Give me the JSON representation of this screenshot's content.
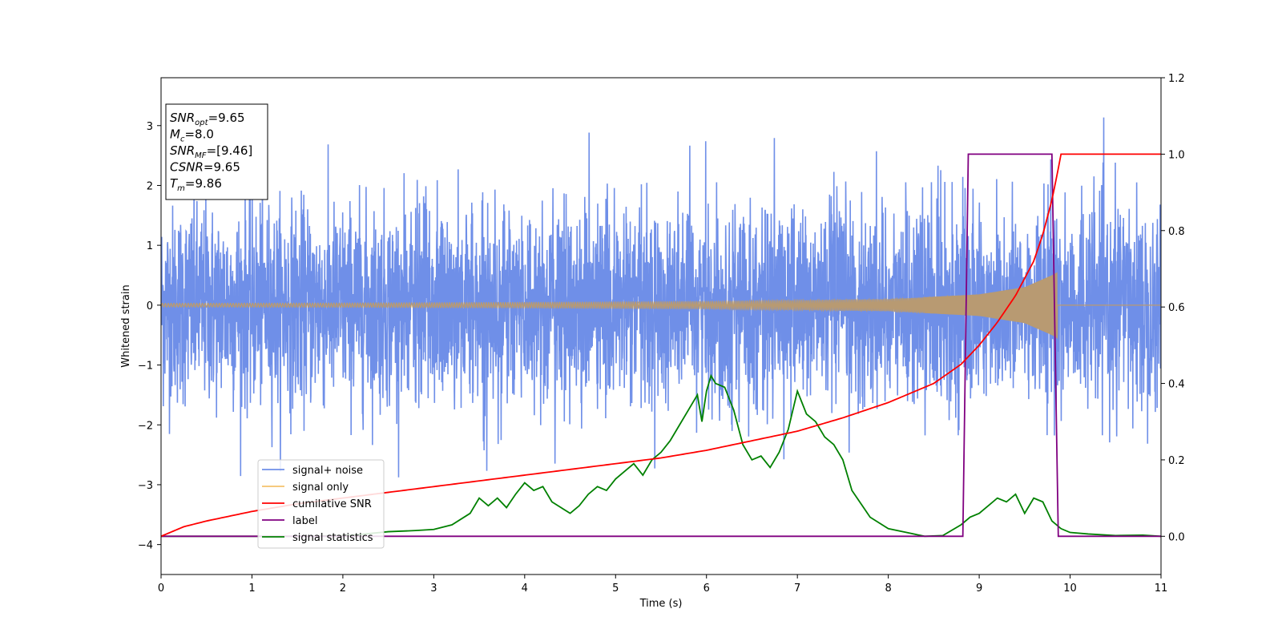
{
  "chart_data": {
    "type": "line",
    "xlabel": "Time (s)",
    "ylabel": "Whitened strain",
    "xlim": [
      0,
      11
    ],
    "ylim": [
      -4.5,
      3.8
    ],
    "y2lim": [
      -0.1,
      1.2
    ],
    "x_ticks": [
      0,
      1,
      2,
      3,
      4,
      5,
      6,
      7,
      8,
      9,
      10,
      11
    ],
    "y_ticks": [
      -4,
      -3,
      -2,
      -1,
      0,
      1,
      2,
      3
    ],
    "y2_ticks": [
      "0.0",
      "0.2",
      "0.4",
      "0.6",
      "0.8",
      "1.0",
      "1.2"
    ],
    "grid": false,
    "legend_position": "lower-left",
    "colors": {
      "noise": "#6f8fe8",
      "signal": "#f5c26b",
      "cumulative": "#ff0000",
      "label": "#800080",
      "stats": "#008000",
      "overlap": "#b89a72"
    },
    "series": [
      {
        "name": "signal+ noise",
        "axis": "left",
        "color": "#6f8fe8",
        "description_range": [
          -3.0,
          3.2
        ]
      },
      {
        "name": "signal only",
        "axis": "left",
        "color": "#f5c26b",
        "amplitude_envelope": {
          "x": [
            0,
            2,
            4,
            6,
            8,
            9,
            9.5,
            9.8,
            9.86
          ],
          "amp": [
            0.03,
            0.035,
            0.045,
            0.06,
            0.1,
            0.18,
            0.3,
            0.5,
            0.55
          ]
        },
        "end_time": 9.86
      },
      {
        "name": "cumilative SNR",
        "axis": "right",
        "x": [
          0,
          0.25,
          0.5,
          1,
          1.5,
          2,
          2.5,
          3,
          3.5,
          4,
          4.5,
          5,
          5.5,
          6,
          6.5,
          7,
          7.5,
          8,
          8.5,
          8.8,
          9,
          9.2,
          9.4,
          9.6,
          9.7,
          9.8,
          9.86,
          9.9,
          11
        ],
        "y": [
          0.0,
          0.025,
          0.04,
          0.065,
          0.085,
          0.1,
          0.115,
          0.13,
          0.145,
          0.16,
          0.175,
          0.19,
          0.205,
          0.225,
          0.25,
          0.275,
          0.31,
          0.35,
          0.4,
          0.45,
          0.5,
          0.56,
          0.63,
          0.72,
          0.79,
          0.88,
          0.95,
          1.0,
          1.0
        ]
      },
      {
        "name": "label",
        "axis": "right",
        "x": [
          0,
          8.82,
          8.88,
          9.8,
          9.87,
          11
        ],
        "y": [
          0,
          0,
          1,
          1,
          0,
          0
        ]
      },
      {
        "name": "signal statistics",
        "axis": "right",
        "x": [
          0,
          0.5,
          1,
          1.5,
          2,
          2.2,
          2.5,
          2.8,
          3.0,
          3.2,
          3.4,
          3.5,
          3.6,
          3.7,
          3.8,
          3.9,
          4.0,
          4.1,
          4.2,
          4.3,
          4.4,
          4.5,
          4.6,
          4.7,
          4.8,
          4.9,
          5.0,
          5.1,
          5.2,
          5.3,
          5.4,
          5.5,
          5.6,
          5.7,
          5.8,
          5.9,
          5.95,
          6.0,
          6.05,
          6.1,
          6.2,
          6.3,
          6.4,
          6.5,
          6.6,
          6.7,
          6.8,
          6.9,
          7.0,
          7.05,
          7.1,
          7.2,
          7.3,
          7.4,
          7.5,
          7.6,
          7.8,
          8.0,
          8.2,
          8.4,
          8.6,
          8.8,
          8.9,
          9.0,
          9.1,
          9.2,
          9.3,
          9.4,
          9.5,
          9.6,
          9.7,
          9.8,
          9.9,
          10.0,
          10.2,
          10.5,
          10.8,
          11
        ],
        "y": [
          0.0,
          0.0,
          0.0,
          0.0,
          0.002,
          0.005,
          0.012,
          0.015,
          0.018,
          0.03,
          0.06,
          0.1,
          0.08,
          0.1,
          0.075,
          0.11,
          0.14,
          0.12,
          0.13,
          0.09,
          0.075,
          0.06,
          0.08,
          0.11,
          0.13,
          0.12,
          0.15,
          0.17,
          0.19,
          0.16,
          0.2,
          0.22,
          0.25,
          0.29,
          0.33,
          0.37,
          0.3,
          0.38,
          0.42,
          0.4,
          0.39,
          0.33,
          0.24,
          0.2,
          0.21,
          0.18,
          0.22,
          0.28,
          0.38,
          0.35,
          0.32,
          0.3,
          0.26,
          0.24,
          0.2,
          0.12,
          0.05,
          0.02,
          0.01,
          0.0,
          0.002,
          0.03,
          0.05,
          0.06,
          0.08,
          0.1,
          0.09,
          0.11,
          0.06,
          0.1,
          0.09,
          0.04,
          0.02,
          0.01,
          0.006,
          0.002,
          0.003,
          0.0
        ]
      }
    ],
    "info_box": [
      {
        "main": "SNR",
        "sub": "opt",
        "value": "=9.65"
      },
      {
        "main": "M",
        "sub": "c",
        "value": "=8.0"
      },
      {
        "main": "SNR",
        "sub": "MF",
        "value": "=[9.46]"
      },
      {
        "main": "CSNR",
        "sub": "",
        "value": "=9.65"
      },
      {
        "main": "T",
        "sub": "m",
        "value": "=9.86"
      }
    ]
  }
}
